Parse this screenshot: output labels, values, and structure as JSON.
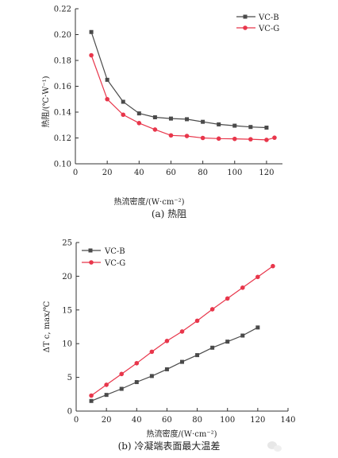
{
  "colors": {
    "vc_b": "#4a4a4a",
    "vc_g": "#e8364b",
    "axis": "#333333"
  },
  "watermark": {
    "icon": "wechat-icon",
    "text": ""
  },
  "chart_data": [
    {
      "type": "line",
      "caption": "(a)  热阻",
      "xlabel": "热流密度/(W·cm⁻²)",
      "ylabel": "热阻/(℃·W⁻¹)",
      "xlim": [
        0,
        130
      ],
      "ylim": [
        0.1,
        0.22
      ],
      "xticks": [
        0,
        20,
        40,
        60,
        80,
        100,
        120
      ],
      "yticks": [
        0.1,
        0.12,
        0.14,
        0.16,
        0.18,
        0.2,
        0.22
      ],
      "ytick_labels": [
        "0.10",
        "0.12",
        "0.14",
        "0.16",
        "0.18",
        "0.20",
        "0.22"
      ],
      "legend": "top-right",
      "grid": false,
      "series": [
        {
          "name": "VC-B",
          "marker": "square",
          "x": [
            10,
            20,
            30,
            40,
            50,
            60,
            70,
            80,
            90,
            100,
            110,
            120
          ],
          "y": [
            0.202,
            0.165,
            0.148,
            0.139,
            0.136,
            0.135,
            0.1345,
            0.1325,
            0.1305,
            0.1295,
            0.1285,
            0.128
          ]
        },
        {
          "name": "VC-G",
          "marker": "circle",
          "x": [
            10,
            20,
            30,
            40,
            50,
            60,
            70,
            80,
            90,
            100,
            110,
            120,
            125
          ],
          "y": [
            0.184,
            0.15,
            0.138,
            0.1315,
            0.1265,
            0.122,
            0.1215,
            0.12,
            0.1195,
            0.1193,
            0.119,
            0.1185,
            0.1202
          ]
        }
      ]
    },
    {
      "type": "line",
      "caption": "(b)  冷凝端表面最大温差",
      "xlabel": "热流密度/(W·cm⁻²)",
      "ylabel": "ΔT c, max/℃",
      "xlim": [
        0,
        140
      ],
      "ylim": [
        0,
        25
      ],
      "xticks": [
        0,
        20,
        40,
        60,
        80,
        100,
        120,
        140
      ],
      "yticks": [
        0,
        5,
        10,
        15,
        20,
        25
      ],
      "ytick_labels": [
        "0",
        "5",
        "10",
        "15",
        "20",
        "25"
      ],
      "legend": "top-left",
      "grid": false,
      "series": [
        {
          "name": "VC-B",
          "marker": "square",
          "x": [
            10,
            20,
            30,
            40,
            50,
            60,
            70,
            80,
            90,
            100,
            110,
            120
          ],
          "y": [
            1.5,
            2.4,
            3.3,
            4.3,
            5.2,
            6.2,
            7.3,
            8.3,
            9.4,
            10.3,
            11.2,
            12.4
          ]
        },
        {
          "name": "VC-G",
          "marker": "circle",
          "x": [
            10,
            20,
            30,
            40,
            50,
            60,
            70,
            80,
            90,
            100,
            110,
            120,
            130
          ],
          "y": [
            2.3,
            3.9,
            5.5,
            7.1,
            8.8,
            10.4,
            11.8,
            13.4,
            15.1,
            16.7,
            18.3,
            19.9,
            21.5
          ]
        }
      ]
    }
  ]
}
